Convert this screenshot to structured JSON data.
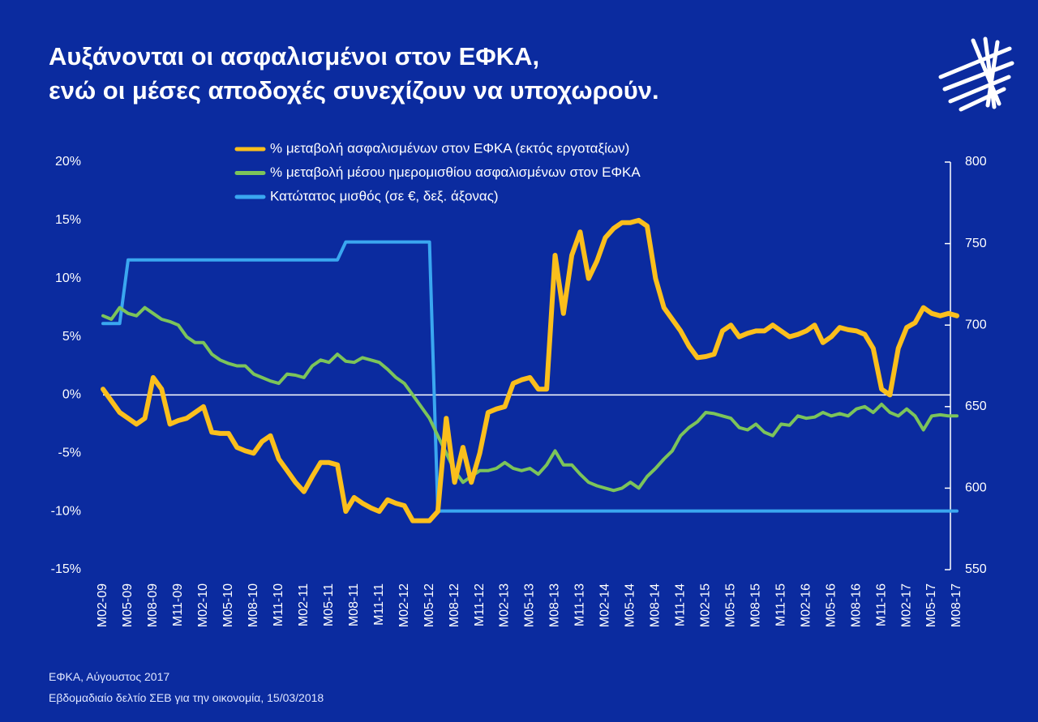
{
  "chart_data": {
    "type": "line",
    "title": [
      "Αυξάνονται οι ασφαλισμένοι στον ΕΦΚΑ,",
      "ενώ οι μέσες αποδοχές συνεχίζουν να υποχωρούν."
    ],
    "notes": [
      "ΕΦΚΑ, Αύγουστος 2017",
      "Εβδομαδιαίο δελτίο ΣΕΒ για την οικονομία, 15/03/2018"
    ],
    "categories": [
      "M02-09",
      null,
      null,
      "M05-09",
      null,
      null,
      "M08-09",
      null,
      null,
      "M11-09",
      null,
      null,
      "M02-10",
      null,
      null,
      "M05-10",
      null,
      null,
      "M08-10",
      null,
      null,
      "M11-10",
      null,
      null,
      "M02-11",
      null,
      null,
      "M05-11",
      null,
      null,
      "M08-11",
      null,
      null,
      "M11-11",
      null,
      null,
      "M02-12",
      null,
      null,
      "M05-12",
      null,
      null,
      "M08-12",
      null,
      null,
      "M11-12",
      null,
      null,
      "M02-13",
      null,
      null,
      "M05-13",
      null,
      null,
      "M08-13",
      null,
      null,
      "M11-13",
      null,
      null,
      "M02-14",
      null,
      null,
      "M05-14",
      null,
      null,
      "M08-14",
      null,
      null,
      "M11-14",
      null,
      null,
      "M02-15",
      null,
      null,
      "M05-15",
      null,
      null,
      "M08-15",
      null,
      null,
      "M11-15",
      null,
      null,
      "M02-16",
      null,
      null,
      "M05-16",
      null,
      null,
      "M08-16",
      null,
      null,
      "M11-16",
      null,
      null,
      "M02-17",
      null,
      null,
      "M05-17",
      null,
      null,
      "M08-17"
    ],
    "series": [
      {
        "name": "% μεταβολή ασφαλισμένων στον ΕΦΚΑ (εκτός εργοταξίων)",
        "color": "#fbbf1c",
        "axis": "y",
        "values": [
          0.5,
          -0.5,
          -1.5,
          -2,
          -2.5,
          -2,
          1.5,
          0.5,
          -2.5,
          -2.2,
          -2,
          -1.5,
          -1,
          -3.2,
          -3.3,
          -3.3,
          -4.5,
          -4.8,
          -5,
          -4,
          -3.5,
          -5.5,
          -6.5,
          -7.5,
          -8.3,
          -7,
          -5.8,
          -5.8,
          -6,
          -10,
          -8.8,
          -9.3,
          -9.7,
          -10,
          -9,
          -9.3,
          -9.5,
          -10.8,
          -10.8,
          -10.8,
          -10,
          -2,
          -7.5,
          -4.5,
          -7.5,
          -5,
          -1.5,
          -1.2,
          -1,
          1,
          1.3,
          1.5,
          0.5,
          0.5,
          12,
          7,
          12,
          14,
          10,
          11.5,
          13.5,
          14.3,
          14.8,
          14.8,
          15,
          14.5,
          10,
          7.5,
          6.5,
          5.5,
          4.2,
          3.2,
          3.3,
          3.5,
          5.5,
          6,
          5,
          5.3,
          5.5,
          5.5,
          6,
          5.5,
          5,
          5.2,
          5.5,
          6,
          4.5,
          5,
          5.8,
          5.6,
          5.5,
          5.2,
          4,
          0.5,
          0,
          4,
          5.8,
          6.2,
          7.5,
          7,
          6.8,
          7,
          6.8
        ]
      },
      {
        "name": "% μεταβολή μέσου ημερομισθίου ασφαλισμένων στον ΕΦΚΑ",
        "color": "#7cc45a",
        "axis": "y",
        "values": [
          6.8,
          6.5,
          7.5,
          7,
          6.8,
          7.5,
          7,
          6.5,
          6.3,
          6,
          5,
          4.5,
          4.5,
          3.5,
          3,
          2.7,
          2.5,
          2.5,
          1.8,
          1.5,
          1.2,
          1,
          1.8,
          1.7,
          1.5,
          2.5,
          3,
          2.8,
          3.5,
          2.9,
          2.8,
          3.2,
          3,
          2.8,
          2.2,
          1.5,
          1,
          0,
          -1,
          -2,
          -3.5,
          -5,
          -6.5,
          -7.5,
          -7,
          -6.5,
          -6.5,
          -6.3,
          -5.8,
          -6.3,
          -6.5,
          -6.3,
          -6.8,
          -6,
          -4.8,
          -6,
          -6,
          -6.8,
          -7.5,
          -7.8,
          -8,
          -8.2,
          -8,
          -7.5,
          -8,
          -7,
          -6.3,
          -5.5,
          -4.8,
          -3.5,
          -2.8,
          -2.3,
          -1.5,
          -1.6,
          -1.8,
          -2,
          -2.8,
          -3,
          -2.5,
          -3.2,
          -3.5,
          -2.5,
          -2.6,
          -1.8,
          -2,
          -1.9,
          -1.5,
          -1.8,
          -1.6,
          -1.8,
          -1.2,
          -1,
          -1.5,
          -0.8,
          -1.5,
          -1.8,
          -1.2,
          -1.8,
          -3,
          -1.8,
          -1.7,
          -1.8,
          -1.8
        ]
      },
      {
        "name": "Κατώτατος μισθός (σε €, δεξ. άξονας)",
        "color": "#3aa7f0",
        "axis": "y2",
        "values": [
          701,
          701,
          701,
          740,
          740,
          740,
          740,
          740,
          740,
          740,
          740,
          740,
          740,
          740,
          740,
          740,
          740,
          740,
          740,
          740,
          740,
          740,
          740,
          740,
          740,
          740,
          740,
          740,
          740,
          751,
          751,
          751,
          751,
          751,
          751,
          751,
          751,
          751,
          751,
          751,
          586,
          586,
          586,
          586,
          586,
          586,
          586,
          586,
          586,
          586,
          586,
          586,
          586,
          586,
          586,
          586,
          586,
          586,
          586,
          586,
          586,
          586,
          586,
          586,
          586,
          586,
          586,
          586,
          586,
          586,
          586,
          586,
          586,
          586,
          586,
          586,
          586,
          586,
          586,
          586,
          586,
          586,
          586,
          586,
          586,
          586,
          586,
          586,
          586,
          586,
          586,
          586,
          586,
          586,
          586,
          586,
          586,
          586,
          586,
          586,
          586,
          586,
          586
        ]
      }
    ],
    "ylim": [
      -15,
      20
    ],
    "yticks": [
      {
        "value": -15,
        "label": "-15%"
      },
      {
        "value": -10,
        "label": "-10%"
      },
      {
        "value": -5,
        "label": "-5%"
      },
      {
        "value": 0,
        "label": "0%"
      },
      {
        "value": 5,
        "label": "5%"
      },
      {
        "value": 10,
        "label": "10%"
      },
      {
        "value": 15,
        "label": "15%"
      },
      {
        "value": 20,
        "label": "20%"
      }
    ],
    "y2lim": [
      550,
      800
    ],
    "y2ticks": [
      550,
      600,
      650,
      700,
      750,
      800
    ],
    "zero_line": true
  }
}
